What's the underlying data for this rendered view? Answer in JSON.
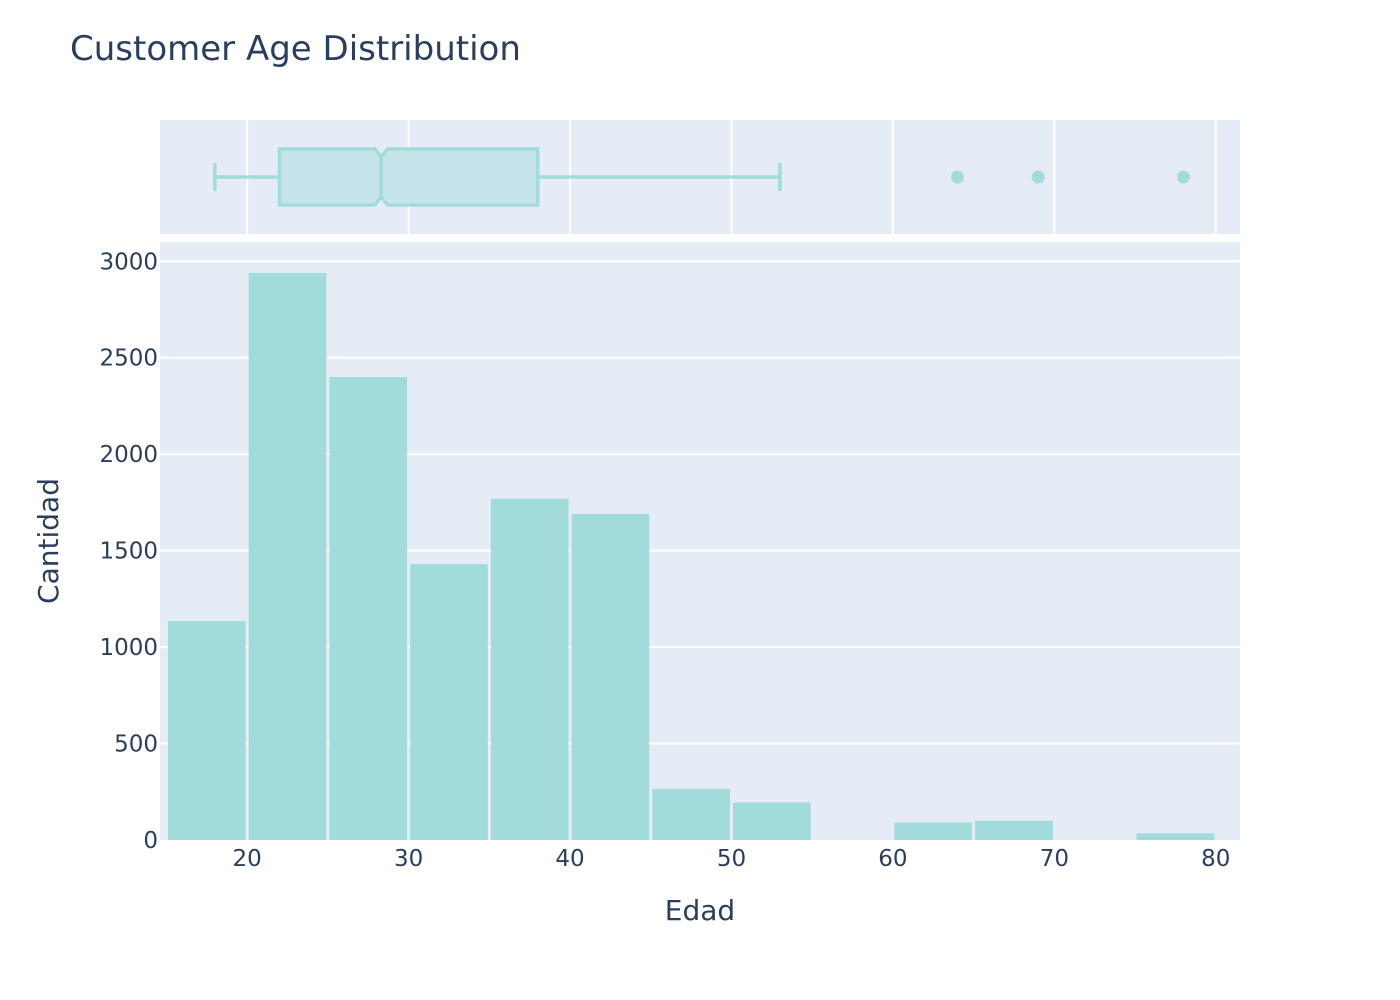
{
  "chart_data": {
    "type": "histogram",
    "title": "Customer Age Distribution",
    "xlabel": "Edad",
    "ylabel": "Cantidad",
    "xlim": [
      14.6,
      81.5
    ],
    "ylim": [
      0,
      3100
    ],
    "x_ticks": [
      20,
      30,
      40,
      50,
      60,
      70,
      80
    ],
    "y_ticks": [
      0,
      500,
      1000,
      1500,
      2000,
      2500,
      3000
    ],
    "bin_width": 5,
    "bins": [
      {
        "start": 15,
        "end": 20,
        "count": 1135
      },
      {
        "start": 20,
        "end": 25,
        "count": 2940
      },
      {
        "start": 25,
        "end": 30,
        "count": 2400
      },
      {
        "start": 30,
        "end": 35,
        "count": 1430
      },
      {
        "start": 35,
        "end": 40,
        "count": 1770
      },
      {
        "start": 40,
        "end": 45,
        "count": 1690
      },
      {
        "start": 45,
        "end": 50,
        "count": 265
      },
      {
        "start": 50,
        "end": 55,
        "count": 195
      },
      {
        "start": 55,
        "end": 60,
        "count": 0
      },
      {
        "start": 60,
        "end": 65,
        "count": 90
      },
      {
        "start": 65,
        "end": 70,
        "count": 100
      },
      {
        "start": 70,
        "end": 75,
        "count": 0
      },
      {
        "start": 75,
        "end": 80,
        "count": 35
      }
    ],
    "marginal_box": {
      "lower_fence": 18,
      "q1": 22,
      "median": 28.3,
      "q3": 38,
      "upper_fence": 53,
      "notch_low": 27.9,
      "notch_high": 28.7,
      "outliers": [
        64,
        69,
        78
      ]
    },
    "grid": true,
    "legend": "none",
    "colors": {
      "bar": "#a1dcdb",
      "box_line": "#a1dcdb",
      "box_fill": "#c5e5ea",
      "plot_bg": "#e5ecf6",
      "grid": "#ffffff",
      "text": "#2a3f5f"
    }
  }
}
